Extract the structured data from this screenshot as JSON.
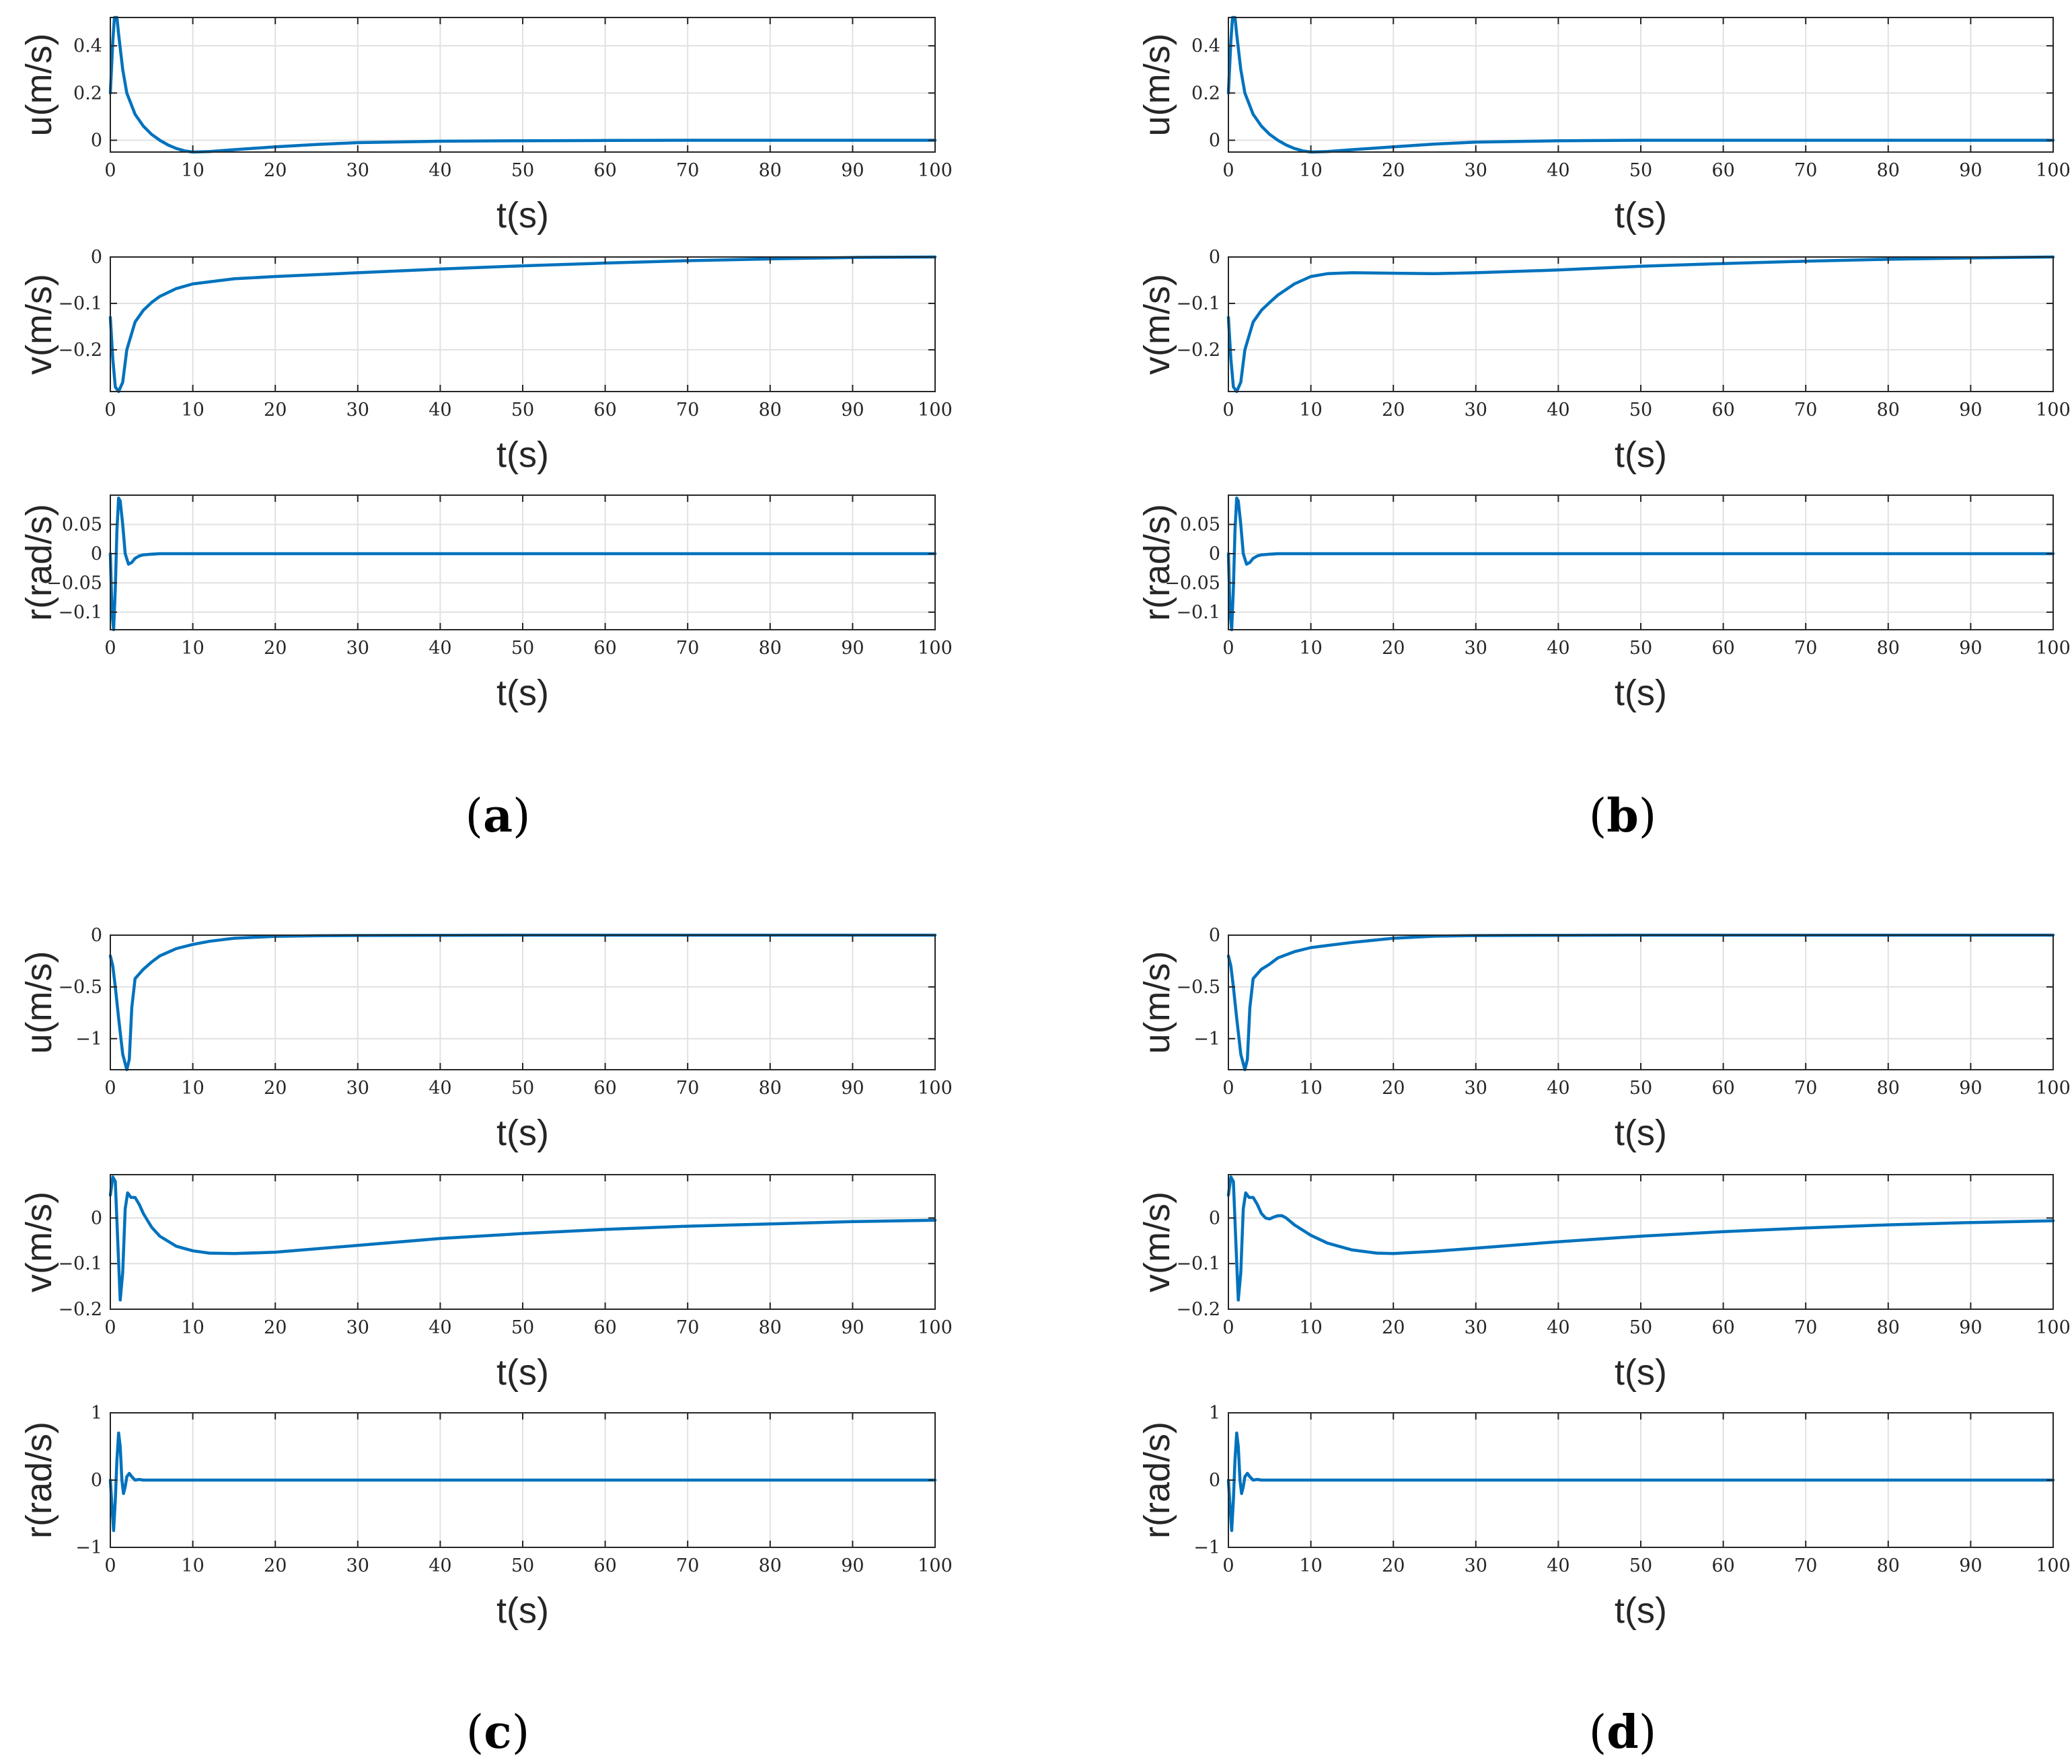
{
  "style": {
    "line_color": "#0072bd",
    "grid_color": "#e1e1e1",
    "axes_color": "#262626"
  },
  "chart_data": [
    {
      "panel": "a",
      "row": 0,
      "type": "line",
      "ylabel": "u(m/s)",
      "xlabel": "t(s)",
      "xlim": [
        0,
        100
      ],
      "ylim": [
        -0.05,
        0.52
      ],
      "xticks": [
        0,
        10,
        20,
        30,
        40,
        50,
        60,
        70,
        80,
        90,
        100
      ],
      "yticks": [
        0,
        0.2,
        0.4
      ],
      "grid": true,
      "x": [
        0,
        0.3,
        0.5,
        0.8,
        1,
        1.5,
        2,
        3,
        4,
        5,
        6,
        7,
        8,
        9,
        10,
        12,
        15,
        20,
        25,
        30,
        40,
        50,
        60,
        70,
        80,
        90,
        100
      ],
      "y": [
        0.2,
        0.42,
        0.52,
        0.52,
        0.45,
        0.3,
        0.2,
        0.11,
        0.06,
        0.025,
        0.0,
        -0.02,
        -0.035,
        -0.045,
        -0.05,
        -0.048,
        -0.04,
        -0.028,
        -0.018,
        -0.01,
        -0.004,
        -0.002,
        -0.001,
        0,
        0,
        0,
        0
      ]
    },
    {
      "panel": "a",
      "row": 1,
      "type": "line",
      "ylabel": "v(m/s)",
      "xlabel": "t(s)",
      "xlim": [
        0,
        100
      ],
      "ylim": [
        -0.29,
        0.0
      ],
      "xticks": [
        0,
        10,
        20,
        30,
        40,
        50,
        60,
        70,
        80,
        90,
        100
      ],
      "yticks": [
        -0.2,
        -0.1,
        0
      ],
      "grid": true,
      "x": [
        0,
        0.3,
        0.6,
        1,
        1.5,
        2,
        3,
        4,
        5,
        6,
        8,
        10,
        15,
        20,
        30,
        40,
        50,
        60,
        70,
        80,
        90,
        100
      ],
      "y": [
        -0.13,
        -0.22,
        -0.28,
        -0.29,
        -0.27,
        -0.2,
        -0.14,
        -0.115,
        -0.098,
        -0.085,
        -0.068,
        -0.058,
        -0.047,
        -0.042,
        -0.034,
        -0.026,
        -0.019,
        -0.013,
        -0.008,
        -0.004,
        -0.001,
        0
      ]
    },
    {
      "panel": "a",
      "row": 2,
      "type": "line",
      "ylabel": "r(rad/s)",
      "xlabel": "t(s)",
      "xlim": [
        0,
        100
      ],
      "ylim": [
        -0.13,
        0.1
      ],
      "xticks": [
        0,
        10,
        20,
        30,
        40,
        50,
        60,
        70,
        80,
        90,
        100
      ],
      "yticks": [
        -0.1,
        -0.05,
        0,
        0.05
      ],
      "grid": true,
      "x": [
        0,
        0.2,
        0.4,
        0.6,
        0.8,
        1.0,
        1.2,
        1.5,
        1.8,
        2.2,
        2.6,
        3,
        3.5,
        4,
        5,
        6,
        8,
        10,
        15,
        20,
        30,
        40,
        50,
        60,
        70,
        80,
        90,
        100
      ],
      "y": [
        0,
        -0.1,
        -0.13,
        -0.06,
        0.04,
        0.095,
        0.09,
        0.05,
        0.0,
        -0.018,
        -0.015,
        -0.008,
        -0.004,
        -0.002,
        -0.001,
        0,
        0,
        0,
        0,
        0,
        0,
        0,
        0,
        0,
        0,
        0,
        0,
        0
      ]
    },
    {
      "panel": "b",
      "row": 0,
      "type": "line",
      "ylabel": "u(m/s)",
      "xlabel": "t(s)",
      "xlim": [
        0,
        100
      ],
      "ylim": [
        -0.05,
        0.52
      ],
      "xticks": [
        0,
        10,
        20,
        30,
        40,
        50,
        60,
        70,
        80,
        90,
        100
      ],
      "yticks": [
        0,
        0.2,
        0.4
      ],
      "grid": true,
      "x": [
        0,
        0.3,
        0.5,
        0.8,
        1,
        1.5,
        2,
        3,
        4,
        5,
        6,
        7,
        8,
        9,
        10,
        12,
        15,
        20,
        25,
        30,
        40,
        50,
        60,
        70,
        80,
        90,
        100
      ],
      "y": [
        0.2,
        0.42,
        0.52,
        0.52,
        0.45,
        0.3,
        0.2,
        0.11,
        0.06,
        0.025,
        0.0,
        -0.02,
        -0.035,
        -0.045,
        -0.05,
        -0.048,
        -0.04,
        -0.028,
        -0.016,
        -0.008,
        -0.002,
        0,
        0,
        0,
        0,
        0,
        0
      ]
    },
    {
      "panel": "b",
      "row": 1,
      "type": "line",
      "ylabel": "v(m/s)",
      "xlabel": "t(s)",
      "xlim": [
        0,
        100
      ],
      "ylim": [
        -0.29,
        0.0
      ],
      "xticks": [
        0,
        10,
        20,
        30,
        40,
        50,
        60,
        70,
        80,
        90,
        100
      ],
      "yticks": [
        -0.2,
        -0.1,
        0
      ],
      "grid": true,
      "x": [
        0,
        0.3,
        0.6,
        1,
        1.5,
        2,
        3,
        4,
        5,
        6,
        8,
        10,
        12,
        15,
        20,
        25,
        30,
        40,
        50,
        60,
        70,
        80,
        90,
        100
      ],
      "y": [
        -0.13,
        -0.22,
        -0.28,
        -0.29,
        -0.27,
        -0.2,
        -0.14,
        -0.115,
        -0.098,
        -0.082,
        -0.058,
        -0.042,
        -0.036,
        -0.034,
        -0.035,
        -0.036,
        -0.034,
        -0.028,
        -0.02,
        -0.014,
        -0.009,
        -0.005,
        -0.002,
        0
      ]
    },
    {
      "panel": "b",
      "row": 2,
      "type": "line",
      "ylabel": "r(rad/s)",
      "xlabel": "t(s)",
      "xlim": [
        0,
        100
      ],
      "ylim": [
        -0.13,
        0.1
      ],
      "xticks": [
        0,
        10,
        20,
        30,
        40,
        50,
        60,
        70,
        80,
        90,
        100
      ],
      "yticks": [
        -0.1,
        -0.05,
        0,
        0.05
      ],
      "grid": true,
      "x": [
        0,
        0.2,
        0.4,
        0.6,
        0.8,
        1.0,
        1.2,
        1.5,
        1.8,
        2.2,
        2.6,
        3,
        3.5,
        4,
        5,
        6,
        8,
        10,
        15,
        20,
        30,
        40,
        50,
        60,
        70,
        80,
        90,
        100
      ],
      "y": [
        0,
        -0.1,
        -0.13,
        -0.06,
        0.04,
        0.095,
        0.09,
        0.05,
        0.0,
        -0.018,
        -0.015,
        -0.008,
        -0.004,
        -0.002,
        -0.001,
        0,
        0,
        0,
        0,
        0,
        0,
        0,
        0,
        0,
        0,
        0,
        0,
        0
      ]
    },
    {
      "panel": "c",
      "row": 0,
      "type": "line",
      "ylabel": "u(m/s)",
      "xlabel": "t(s)",
      "xlim": [
        0,
        100
      ],
      "ylim": [
        -1.3,
        0.0
      ],
      "xticks": [
        0,
        10,
        20,
        30,
        40,
        50,
        60,
        70,
        80,
        90,
        100
      ],
      "yticks": [
        -1,
        -0.5,
        0
      ],
      "grid": true,
      "x": [
        0,
        0.3,
        0.6,
        1,
        1.5,
        2,
        2.3,
        2.6,
        3,
        4,
        5,
        6,
        8,
        10,
        12,
        15,
        20,
        25,
        30,
        40,
        50,
        60,
        70,
        80,
        90,
        100
      ],
      "y": [
        -0.2,
        -0.3,
        -0.5,
        -0.8,
        -1.15,
        -1.3,
        -1.2,
        -0.7,
        -0.42,
        -0.33,
        -0.26,
        -0.2,
        -0.13,
        -0.09,
        -0.06,
        -0.03,
        -0.012,
        -0.006,
        -0.003,
        -0.001,
        0,
        0,
        0,
        0,
        0,
        0
      ]
    },
    {
      "panel": "c",
      "row": 1,
      "type": "line",
      "ylabel": "v(m/s)",
      "xlabel": "t(s)",
      "xlim": [
        0,
        100
      ],
      "ylim": [
        -0.2,
        0.095
      ],
      "xticks": [
        0,
        10,
        20,
        30,
        40,
        50,
        60,
        70,
        80,
        90,
        100
      ],
      "yticks": [
        -0.2,
        -0.1,
        0
      ],
      "grid": true,
      "x": [
        0,
        0.3,
        0.6,
        0.9,
        1.2,
        1.5,
        1.8,
        2.1,
        2.5,
        3,
        3.5,
        4,
        5,
        6,
        8,
        10,
        12,
        15,
        20,
        30,
        40,
        50,
        60,
        70,
        80,
        90,
        100
      ],
      "y": [
        0.05,
        0.09,
        0.08,
        -0.05,
        -0.18,
        -0.12,
        0.02,
        0.055,
        0.045,
        0.045,
        0.03,
        0.01,
        -0.02,
        -0.04,
        -0.062,
        -0.072,
        -0.077,
        -0.078,
        -0.075,
        -0.06,
        -0.045,
        -0.034,
        -0.025,
        -0.018,
        -0.013,
        -0.008,
        -0.005
      ]
    },
    {
      "panel": "c",
      "row": 2,
      "type": "line",
      "ylabel": "r(rad/s)",
      "xlabel": "t(s)",
      "xlim": [
        0,
        100
      ],
      "ylim": [
        -1.0,
        1.0
      ],
      "xticks": [
        0,
        10,
        20,
        30,
        40,
        50,
        60,
        70,
        80,
        90,
        100
      ],
      "yticks": [
        -1,
        0,
        1
      ],
      "grid": true,
      "x": [
        0,
        0.2,
        0.4,
        0.6,
        0.8,
        1.0,
        1.2,
        1.4,
        1.6,
        1.8,
        2.0,
        2.3,
        2.6,
        3,
        3.5,
        4,
        5,
        6,
        8,
        10,
        20,
        30,
        40,
        50,
        60,
        70,
        80,
        90,
        100
      ],
      "y": [
        0,
        -0.4,
        -0.75,
        -0.3,
        0.3,
        0.7,
        0.5,
        0.0,
        -0.2,
        -0.1,
        0.05,
        0.1,
        0.05,
        0.0,
        0.01,
        0,
        0,
        0,
        0,
        0,
        0,
        0,
        0,
        0,
        0,
        0,
        0,
        0,
        0
      ]
    },
    {
      "panel": "d",
      "row": 0,
      "type": "line",
      "ylabel": "u(m/s)",
      "xlabel": "t(s)",
      "xlim": [
        0,
        100
      ],
      "ylim": [
        -1.3,
        0.0
      ],
      "xticks": [
        0,
        10,
        20,
        30,
        40,
        50,
        60,
        70,
        80,
        90,
        100
      ],
      "yticks": [
        -1,
        -0.5,
        0
      ],
      "grid": true,
      "x": [
        0,
        0.3,
        0.6,
        1,
        1.5,
        2,
        2.3,
        2.6,
        3,
        4,
        5,
        6,
        8,
        10,
        12,
        15,
        20,
        25,
        30,
        40,
        50,
        60,
        70,
        80,
        90,
        100
      ],
      "y": [
        -0.2,
        -0.3,
        -0.5,
        -0.8,
        -1.15,
        -1.3,
        -1.2,
        -0.7,
        -0.42,
        -0.33,
        -0.28,
        -0.22,
        -0.16,
        -0.12,
        -0.1,
        -0.07,
        -0.03,
        -0.01,
        -0.004,
        -0.001,
        0,
        0,
        0,
        0,
        0,
        0
      ]
    },
    {
      "panel": "d",
      "row": 1,
      "type": "line",
      "ylabel": "v(m/s)",
      "xlabel": "t(s)",
      "xlim": [
        0,
        100
      ],
      "ylim": [
        -0.2,
        0.095
      ],
      "xticks": [
        0,
        10,
        20,
        30,
        40,
        50,
        60,
        70,
        80,
        90,
        100
      ],
      "yticks": [
        -0.2,
        -0.1,
        0
      ],
      "grid": true,
      "x": [
        0,
        0.3,
        0.6,
        0.9,
        1.2,
        1.5,
        1.8,
        2.1,
        2.5,
        3,
        3.5,
        4,
        4.5,
        5,
        5.5,
        6,
        6.5,
        7,
        8,
        10,
        12,
        15,
        18,
        20,
        25,
        30,
        40,
        50,
        60,
        70,
        80,
        90,
        100
      ],
      "y": [
        0.05,
        0.09,
        0.08,
        -0.05,
        -0.18,
        -0.12,
        0.02,
        0.055,
        0.045,
        0.045,
        0.03,
        0.01,
        0.0,
        -0.002,
        0.002,
        0.005,
        0.005,
        0.0,
        -0.015,
        -0.038,
        -0.055,
        -0.07,
        -0.077,
        -0.078,
        -0.073,
        -0.066,
        -0.052,
        -0.04,
        -0.03,
        -0.022,
        -0.015,
        -0.01,
        -0.006
      ]
    },
    {
      "panel": "d",
      "row": 2,
      "type": "line",
      "ylabel": "r(rad/s)",
      "xlabel": "t(s)",
      "xlim": [
        0,
        100
      ],
      "ylim": [
        -1.0,
        1.0
      ],
      "xticks": [
        0,
        10,
        20,
        30,
        40,
        50,
        60,
        70,
        80,
        90,
        100
      ],
      "yticks": [
        -1,
        0,
        1
      ],
      "grid": true,
      "x": [
        0,
        0.2,
        0.4,
        0.6,
        0.8,
        1.0,
        1.2,
        1.4,
        1.6,
        1.8,
        2.0,
        2.3,
        2.6,
        3,
        3.5,
        4,
        5,
        6,
        8,
        10,
        20,
        30,
        40,
        50,
        60,
        70,
        80,
        90,
        100
      ],
      "y": [
        0,
        -0.4,
        -0.75,
        -0.3,
        0.3,
        0.7,
        0.5,
        0.0,
        -0.2,
        -0.1,
        0.05,
        0.1,
        0.05,
        0.0,
        0.01,
        0,
        0,
        0,
        0,
        0,
        0,
        0,
        0,
        0,
        0,
        0,
        0,
        0,
        0
      ]
    }
  ],
  "panel_labels": [
    {
      "panel": "a",
      "open": "(",
      "letter": "a",
      "close": ")"
    },
    {
      "panel": "b",
      "open": "(",
      "letter": "b",
      "close": ")"
    },
    {
      "panel": "c",
      "open": "(",
      "letter": "c",
      "close": ")"
    },
    {
      "panel": "d",
      "open": "(",
      "letter": "d",
      "close": ")"
    }
  ]
}
